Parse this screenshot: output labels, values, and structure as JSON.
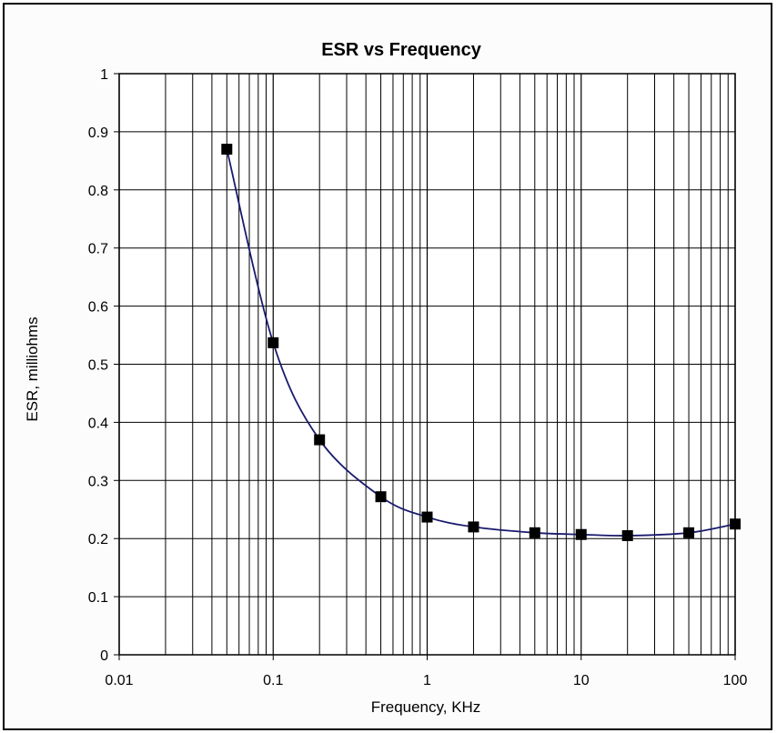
{
  "chart_data": {
    "type": "line",
    "title": "ESR vs Frequency",
    "xlabel": "Frequency,  KHz",
    "ylabel": "ESR,  milliohms",
    "x_scale": "log",
    "xlim": [
      0.01,
      100
    ],
    "ylim": [
      0,
      1
    ],
    "x_ticks": [
      0.01,
      0.1,
      1,
      10,
      100
    ],
    "x_tick_labels": [
      "0.01",
      "0.1",
      "1",
      "10",
      "100"
    ],
    "y_ticks": [
      0,
      0.1,
      0.2,
      0.3,
      0.4,
      0.5,
      0.6,
      0.7,
      0.8,
      0.9,
      1
    ],
    "y_tick_labels": [
      "0",
      "0.1",
      "0.2",
      "0.3",
      "0.4",
      "0.5",
      "0.6",
      "0.7",
      "0.8",
      "0.9",
      "1"
    ],
    "grid": true,
    "series": [
      {
        "x": [
          0.05,
          0.1,
          0.2,
          0.5,
          1,
          2,
          5,
          10,
          20,
          50,
          100
        ],
        "y": [
          0.87,
          0.537,
          0.37,
          0.272,
          0.237,
          0.22,
          0.21,
          0.207,
          0.205,
          0.21,
          0.225
        ],
        "marker": "square",
        "line_color": "#1a1a6e",
        "marker_color": "#000000"
      }
    ]
  }
}
